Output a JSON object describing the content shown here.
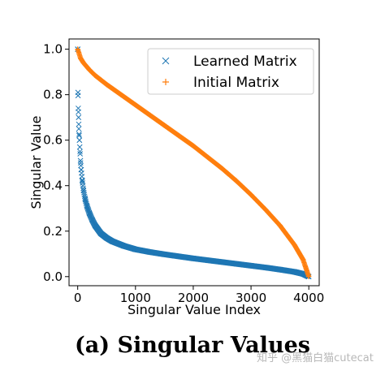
{
  "chart_data": {
    "type": "scatter",
    "xlabel": "Singular Value Index",
    "ylabel": "Singular Value",
    "xlim": [
      -150,
      4180
    ],
    "ylim": [
      -0.04,
      1.045
    ],
    "xticks": [
      0,
      1000,
      2000,
      3000,
      4000
    ],
    "yticks": [
      0.0,
      0.2,
      0.4,
      0.6,
      0.8,
      1.0
    ],
    "xtick_labels": [
      "0",
      "1000",
      "2000",
      "3000",
      "4000"
    ],
    "ytick_labels": [
      "0.0",
      "0.2",
      "0.4",
      "0.6",
      "0.8",
      "1.0"
    ],
    "grid": false,
    "legend_position": "top-right",
    "series": [
      {
        "name": "Learned Matrix",
        "marker": "x",
        "color": "#1f77b4",
        "x": [
          0,
          5,
          10,
          15,
          20,
          25,
          30,
          40,
          50,
          60,
          80,
          100,
          130,
          160,
          200,
          250,
          300,
          400,
          500,
          600,
          800,
          1000,
          1250,
          1500,
          1750,
          2000,
          2250,
          2500,
          2750,
          3000,
          3250,
          3500,
          3750,
          3900,
          4000
        ],
        "y": [
          1.0,
          0.81,
          0.74,
          0.7,
          0.65,
          0.62,
          0.6,
          0.55,
          0.5,
          0.47,
          0.42,
          0.38,
          0.34,
          0.31,
          0.28,
          0.25,
          0.225,
          0.19,
          0.17,
          0.155,
          0.135,
          0.12,
          0.108,
          0.098,
          0.089,
          0.08,
          0.072,
          0.064,
          0.056,
          0.048,
          0.04,
          0.031,
          0.021,
          0.012,
          0.0
        ]
      },
      {
        "name": "Initial Matrix",
        "marker": "+",
        "color": "#ff7f0e",
        "x": [
          0,
          50,
          100,
          200,
          300,
          400,
          500,
          750,
          1000,
          1250,
          1500,
          1750,
          2000,
          2250,
          2500,
          2750,
          3000,
          3250,
          3500,
          3750,
          3900,
          4000
        ],
        "y": [
          1.0,
          0.96,
          0.94,
          0.91,
          0.885,
          0.865,
          0.845,
          0.8,
          0.755,
          0.71,
          0.665,
          0.62,
          0.575,
          0.525,
          0.475,
          0.42,
          0.36,
          0.295,
          0.225,
          0.14,
          0.075,
          0.0
        ]
      }
    ]
  },
  "caption": "(a) Singular Values",
  "watermark": "知乎 @黑猫白猫cutecat"
}
